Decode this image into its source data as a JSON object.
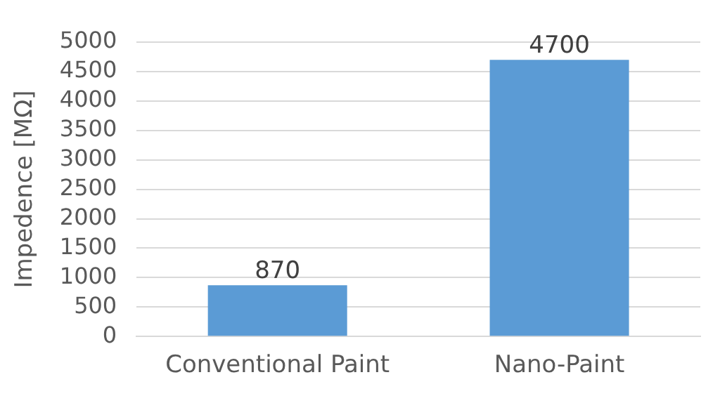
{
  "chart_data": {
    "type": "bar",
    "ylabel": "Impedence [MΩ]",
    "categories": [
      "Conventional Paint",
      "Nano-Paint"
    ],
    "values": [
      870,
      4700
    ],
    "color": "#5b9bd5",
    "ylim": [
      0,
      5000
    ],
    "yticks": [
      0,
      500,
      1000,
      1500,
      2000,
      2500,
      3000,
      3500,
      4000,
      4500,
      5000
    ],
    "grid": "y",
    "data_labels": true,
    "legend": false
  }
}
